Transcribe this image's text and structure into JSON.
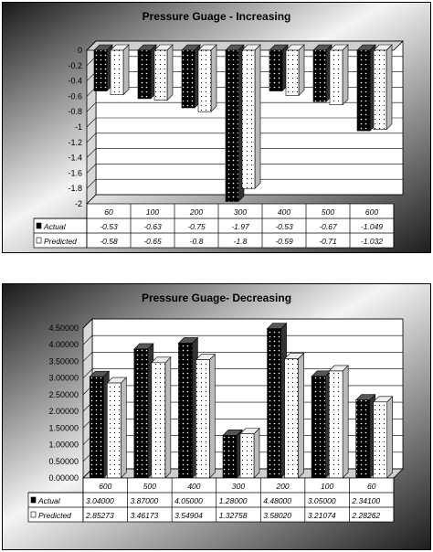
{
  "chart_data": [
    {
      "type": "bar",
      "title": "Pressure Guage - Increasing",
      "categories": [
        "60",
        "100",
        "200",
        "300",
        "400",
        "500",
        "600"
      ],
      "series": [
        {
          "name": "Actual",
          "values": [
            -0.53,
            -0.63,
            -0.75,
            -1.97,
            -0.53,
            -0.67,
            -1.049
          ],
          "labels": [
            "-0.53",
            "-0.63",
            "-0.75",
            "-1.97",
            "-0.53",
            "-0.67",
            "-1.049"
          ]
        },
        {
          "name": "Predicted",
          "values": [
            -0.58,
            -0.65,
            -0.8,
            -1.8,
            -0.59,
            -0.71,
            -1.032
          ],
          "labels": [
            "-0.58",
            "-0.65",
            "-0.8",
            "-1.8",
            "-0.59",
            "-0.71",
            "-1.032"
          ]
        }
      ],
      "ylim": [
        -2,
        0
      ],
      "yticks": [
        "0",
        "-0.2",
        "-0.4",
        "-0.6",
        "-0.8",
        "-1",
        "-1.2",
        "-1.4",
        "-1.6",
        "-1.8",
        "-2"
      ],
      "grid": true,
      "legend": "data table"
    },
    {
      "type": "bar",
      "title": "Pressure Guage- Decreasing",
      "categories": [
        "600",
        "500",
        "400",
        "300",
        "200",
        "100",
        "60"
      ],
      "series": [
        {
          "name": "Actual",
          "values": [
            3.04,
            3.87,
            4.05,
            1.28,
            4.48,
            3.05,
            2.341
          ],
          "labels": [
            "3.04000",
            "3.87000",
            "4.05000",
            "1.28000",
            "4.48000",
            "3.05000",
            "2.34100"
          ]
        },
        {
          "name": "Predicted",
          "values": [
            2.85273,
            3.46173,
            3.54904,
            1.32758,
            3.5802,
            3.21074,
            2.28262
          ],
          "labels": [
            "2.85273",
            "3.46173",
            "3.54904",
            "1.32758",
            "3.58020",
            "3.21074",
            "2.28262"
          ]
        }
      ],
      "ylim": [
        0,
        4.5
      ],
      "yticks": [
        "4.50000",
        "4.00000",
        "3.50000",
        "3.00000",
        "2.50000",
        "2.00000",
        "1.50000",
        "1.00000",
        "0.50000",
        "0.00000"
      ],
      "grid": true,
      "legend": "data table"
    }
  ]
}
